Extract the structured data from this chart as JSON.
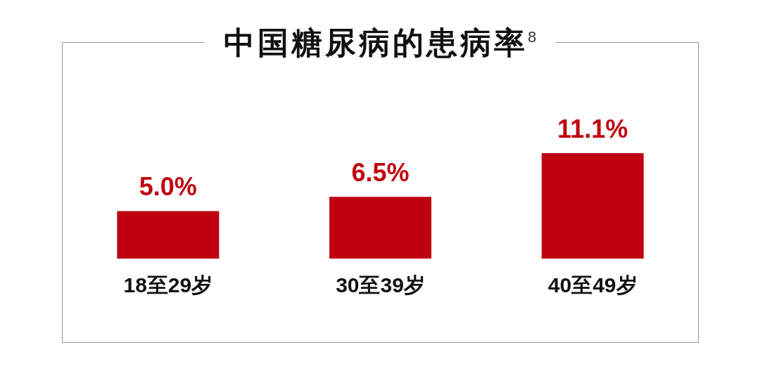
{
  "chart_data": {
    "type": "bar",
    "title": "中国糖尿病的患病率$^{8}$",
    "categories": [
      "18至29岁",
      "30至39岁",
      "40至49岁"
    ],
    "values": [
      5.0,
      6.5,
      11.1
    ],
    "value_labels": [
      "5.0%",
      "6.5%",
      "11.1%"
    ],
    "color": "#bf0010"
  }
}
